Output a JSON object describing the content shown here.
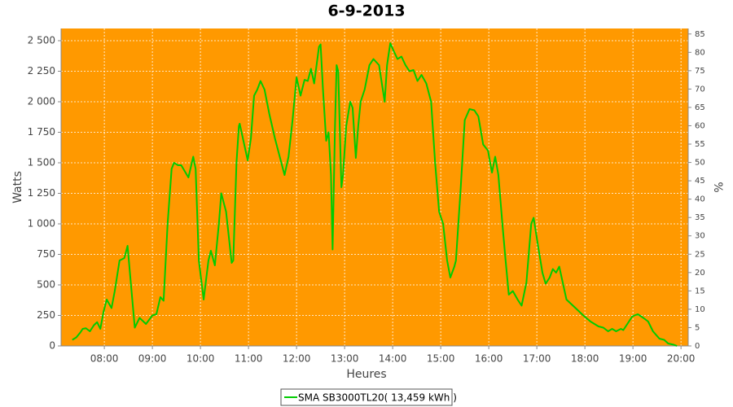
{
  "chart_data": {
    "type": "line",
    "title": "6-9-2013",
    "x_label": "Heures",
    "y_label": "Watts",
    "y2_label": "%",
    "plot_background": "#ff9900",
    "grid": true,
    "xlim": [
      "07:06",
      "20:09"
    ],
    "xticks": [
      "08:00",
      "09:00",
      "10:00",
      "11:00",
      "12:00",
      "13:00",
      "14:00",
      "15:00",
      "16:00",
      "17:00",
      "18:00",
      "19:00",
      "20:00"
    ],
    "ylim": [
      0,
      2600
    ],
    "yticks": [
      0,
      {
        "value": 250,
        "label": "250"
      },
      {
        "value": 500,
        "label": "500"
      },
      {
        "value": 750,
        "label": "750"
      },
      {
        "value": 1000,
        "label": "1 000"
      },
      {
        "value": 1250,
        "label": "1 250"
      },
      {
        "value": 1500,
        "label": "1 500"
      },
      {
        "value": 1750,
        "label": "1 750"
      },
      {
        "value": 2000,
        "label": "2 000"
      },
      {
        "value": 2250,
        "label": "2 250"
      },
      {
        "value": 2500,
        "label": "2 500"
      }
    ],
    "y2lim": [
      0,
      86.5
    ],
    "y2ticks": [
      0,
      5,
      10,
      15,
      20,
      25,
      30,
      35,
      40,
      45,
      50,
      55,
      60,
      65,
      70,
      75,
      80,
      85
    ],
    "x": [
      "07:20",
      "07:25",
      "07:30",
      "07:33",
      "07:37",
      "07:42",
      "07:47",
      "07:51",
      "07:55",
      "07:59",
      "08:03",
      "08:09",
      "08:13",
      "08:19",
      "08:25",
      "08:29",
      "08:38",
      "08:44",
      "08:52",
      "09:00",
      "09:05",
      "09:10",
      "09:14",
      "09:19",
      "09:24",
      "09:27",
      "09:32",
      "09:36",
      "09:45",
      "09:51",
      "09:54",
      "09:58",
      "10:04",
      "10:10",
      "10:13",
      "10:18",
      "10:23",
      "10:26",
      "10:32",
      "10:39",
      "10:41",
      "10:45",
      "10:48",
      "10:49",
      "10:53",
      "10:59",
      "11:03",
      "11:07",
      "11:11",
      "11:15",
      "11:20",
      "11:26",
      "11:33",
      "11:39",
      "11:45",
      "11:50",
      "11:55",
      "12:00",
      "12:05",
      "12:10",
      "12:14",
      "12:18",
      "12:22",
      "12:28",
      "12:30",
      "12:33",
      "12:37",
      "12:40",
      "12:43",
      "12:45",
      "12:48",
      "12:50",
      "12:52",
      "12:56",
      "12:58",
      "13:02",
      "13:07",
      "13:10",
      "13:14",
      "13:17",
      "13:20",
      "13:25",
      "13:31",
      "13:36",
      "13:43",
      "13:50",
      "13:53",
      "13:57",
      "14:01",
      "14:06",
      "14:11",
      "14:16",
      "14:21",
      "14:26",
      "14:31",
      "14:36",
      "14:42",
      "14:48",
      "14:53",
      "14:58",
      "15:03",
      "15:08",
      "15:12",
      "15:17",
      "15:19",
      "15:25",
      "15:30",
      "15:36",
      "15:42",
      "15:47",
      "15:53",
      "15:59",
      "16:04",
      "16:08",
      "16:12",
      "16:17",
      "16:21",
      "16:25",
      "16:30",
      "16:36",
      "16:41",
      "16:47",
      "16:53",
      "16:56",
      "17:02",
      "17:07",
      "17:11",
      "17:16",
      "17:20",
      "17:24",
      "17:28",
      "17:33",
      "17:37",
      "17:50",
      "17:58",
      "18:07",
      "18:17",
      "18:23",
      "18:29",
      "18:34",
      "18:39",
      "18:45",
      "18:48",
      "18:53",
      "18:59",
      "19:02",
      "19:06",
      "19:13",
      "19:19",
      "19:25",
      "19:33",
      "19:39",
      "19:44",
      "19:51",
      "19:55"
    ],
    "series": [
      {
        "name": "SMA SB3000TL20( 13,459 kWh )",
        "color": "#00cc00",
        "values": [
          50,
          70,
          110,
          140,
          145,
          120,
          170,
          195,
          140,
          280,
          380,
          310,
          450,
          700,
          720,
          820,
          150,
          230,
          180,
          250,
          260,
          400,
          370,
          1000,
          1450,
          1500,
          1480,
          1480,
          1380,
          1550,
          1450,
          700,
          380,
          700,
          780,
          660,
          1000,
          1250,
          1100,
          680,
          700,
          1500,
          1800,
          1820,
          1700,
          1520,
          1700,
          2050,
          2100,
          2170,
          2100,
          1900,
          1700,
          1550,
          1400,
          1550,
          1850,
          2200,
          2050,
          2180,
          2170,
          2270,
          2150,
          2450,
          2470,
          2100,
          1680,
          1750,
          1400,
          790,
          1800,
          2300,
          2250,
          1300,
          1400,
          1800,
          2000,
          1950,
          1540,
          1800,
          2000,
          2100,
          2300,
          2350,
          2300,
          2000,
          2300,
          2480,
          2420,
          2350,
          2370,
          2300,
          2250,
          2260,
          2170,
          2220,
          2150,
          2000,
          1500,
          1100,
          1000,
          700,
          560,
          650,
          700,
          1300,
          1850,
          1940,
          1930,
          1880,
          1650,
          1600,
          1420,
          1550,
          1400,
          1000,
          700,
          420,
          450,
          380,
          330,
          520,
          1000,
          1050,
          800,
          600,
          510,
          560,
          630,
          600,
          650,
          500,
          380,
          300,
          250,
          200,
          160,
          150,
          120,
          140,
          120,
          140,
          130,
          180,
          240,
          250,
          260,
          230,
          200,
          120,
          60,
          50,
          20,
          10,
          0
        ]
      }
    ]
  }
}
